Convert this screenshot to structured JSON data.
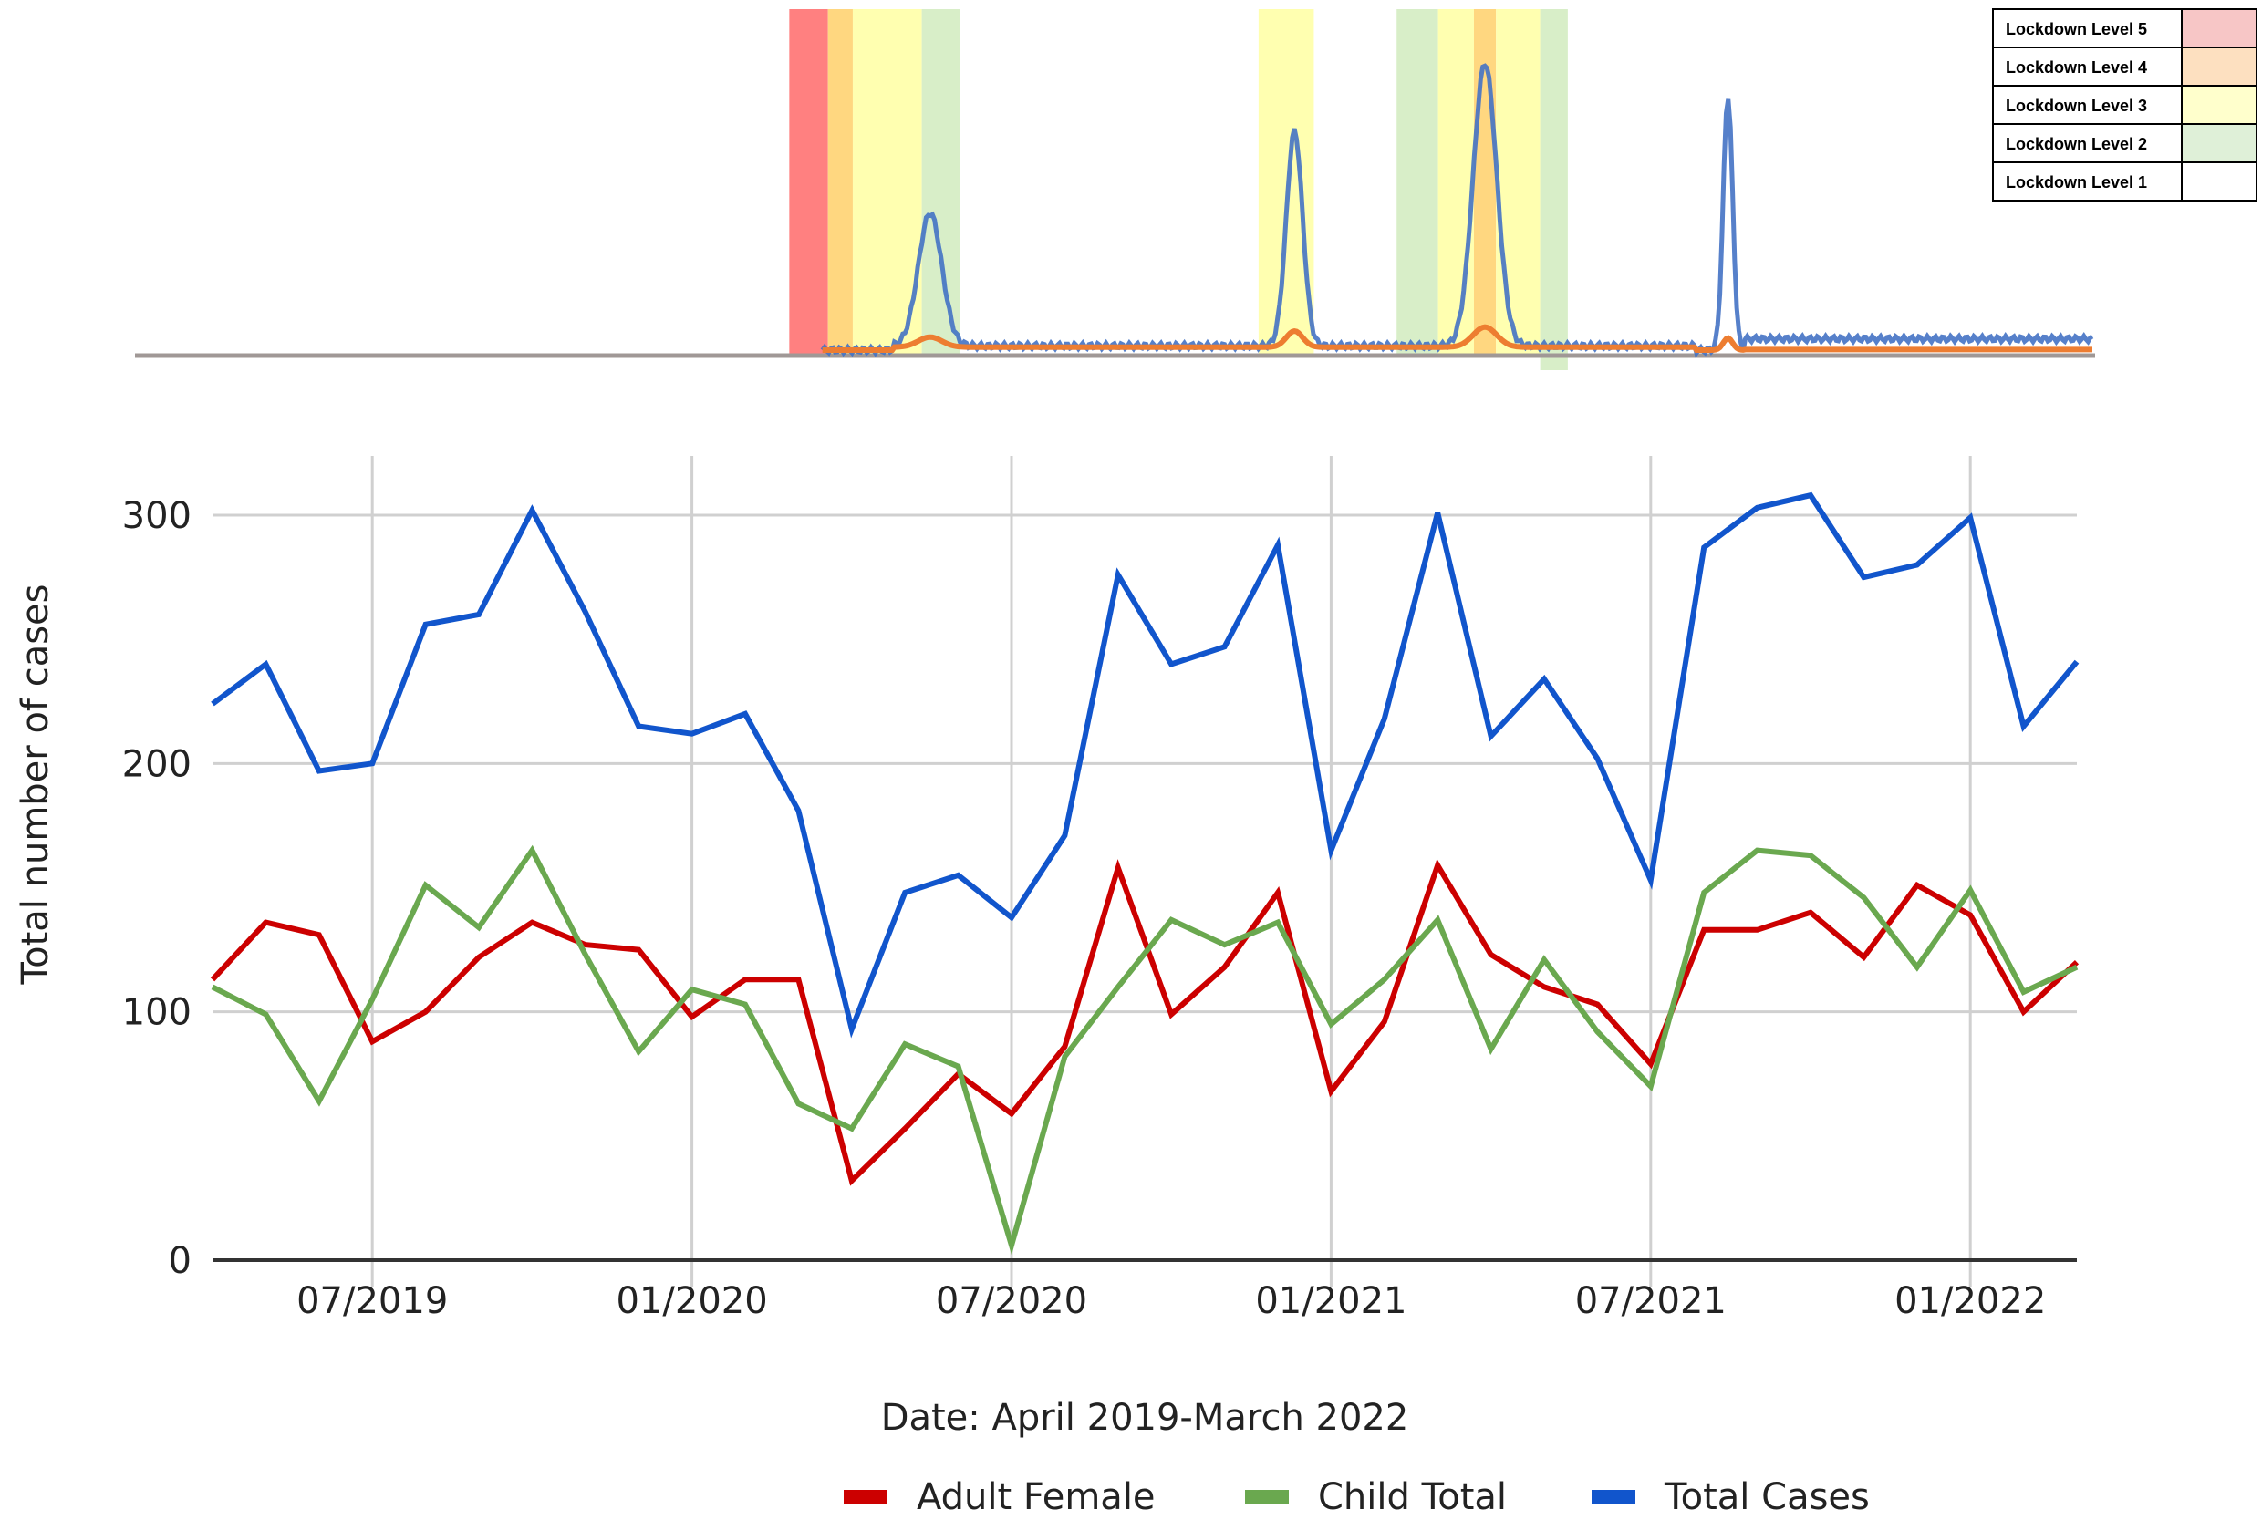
{
  "chart_data": {
    "type": "line",
    "title": "",
    "xlabel": "Date: April 2019-March 2022",
    "ylabel": "Total number of cases",
    "ylim": [
      0,
      300
    ],
    "yticks": [
      0,
      100,
      200,
      300
    ],
    "xtick_labels": [
      "07/2019",
      "01/2020",
      "07/2020",
      "01/2021",
      "07/2021",
      "01/2022"
    ],
    "xtick_months": [
      3,
      9,
      15,
      21,
      27,
      33
    ],
    "grid": true,
    "legend_position": "bottom",
    "series": [
      {
        "name": "Adult Female",
        "color": "#cc0000",
        "values": [
          113,
          136,
          131,
          88,
          100,
          122,
          136,
          127,
          125,
          98,
          113,
          113,
          32,
          53,
          75,
          59,
          86,
          158,
          99,
          118,
          148,
          68,
          96,
          159,
          123,
          110,
          103,
          79,
          133,
          133,
          140,
          122,
          151,
          139,
          100,
          120
        ]
      },
      {
        "name": "Child Total",
        "color": "#6aa84f",
        "values": [
          110,
          99,
          64,
          105,
          151,
          134,
          165,
          123,
          84,
          109,
          103,
          63,
          53,
          87,
          78,
          6,
          82,
          110,
          137,
          127,
          136,
          95,
          113,
          137,
          85,
          121,
          92,
          70,
          148,
          165,
          163,
          146,
          118,
          149,
          108,
          118
        ]
      },
      {
        "name": "Total Cases",
        "color": "#1155cc",
        "values": [
          224,
          240,
          197,
          200,
          256,
          260,
          302,
          261,
          215,
          212,
          220,
          181,
          93,
          148,
          155,
          138,
          171,
          276,
          240,
          247,
          288,
          165,
          218,
          301,
          211,
          234,
          202,
          153,
          287,
          303,
          308,
          275,
          280,
          299,
          215,
          241
        ]
      }
    ]
  },
  "lockdown_legend": {
    "items": [
      {
        "label": "Lockdown Level 5",
        "color": "#f7c6c6"
      },
      {
        "label": "Lockdown Level 4",
        "color": "#fde0c0"
      },
      {
        "label": "Lockdown Level 3",
        "color": "#ffffcc"
      },
      {
        "label": "Lockdown Level 2",
        "color": "#dff0d8"
      },
      {
        "label": "Lockdown Level 1",
        "color": "#ffffff"
      }
    ]
  },
  "lockdown_bands": [
    {
      "level": 5,
      "color": "#ff8080",
      "start_month": 11.6,
      "end_month": 12.3
    },
    {
      "level": 4,
      "color": "#ffd780",
      "start_month": 12.3,
      "end_month": 12.75
    },
    {
      "level": 3,
      "color": "#ffffb0",
      "start_month": 12.75,
      "end_month": 14.0
    },
    {
      "level": 2,
      "color": "#d8eec8",
      "start_month": 14.0,
      "end_month": 14.7
    },
    {
      "level": 3,
      "color": "#ffffb0",
      "start_month": 20.1,
      "end_month": 21.1
    },
    {
      "level": 2,
      "color": "#d8eec8",
      "start_month": 22.6,
      "end_month": 23.35
    },
    {
      "level": 3,
      "color": "#ffffb0",
      "start_month": 23.35,
      "end_month": 24.0
    },
    {
      "level": 4,
      "color": "#ffd780",
      "start_month": 24.0,
      "end_month": 24.4
    },
    {
      "level": 3,
      "color": "#ffffb0",
      "start_month": 24.4,
      "end_month": 25.2
    },
    {
      "level": 2,
      "color": "#d8eec8",
      "start_month": 25.2,
      "end_month": 25.7
    }
  ],
  "covid_wave_peaks": {
    "total_peak_months": [
      14.15,
      20.75,
      24.2,
      28.6
    ],
    "total_peak_heights": [
      0.47,
      0.76,
      1.0,
      0.9
    ],
    "total_peak_widths": [
      0.55,
      0.38,
      0.55,
      0.22
    ],
    "secondary_peak_heights": [
      0.05,
      0.08,
      0.1,
      0.06
    ]
  }
}
